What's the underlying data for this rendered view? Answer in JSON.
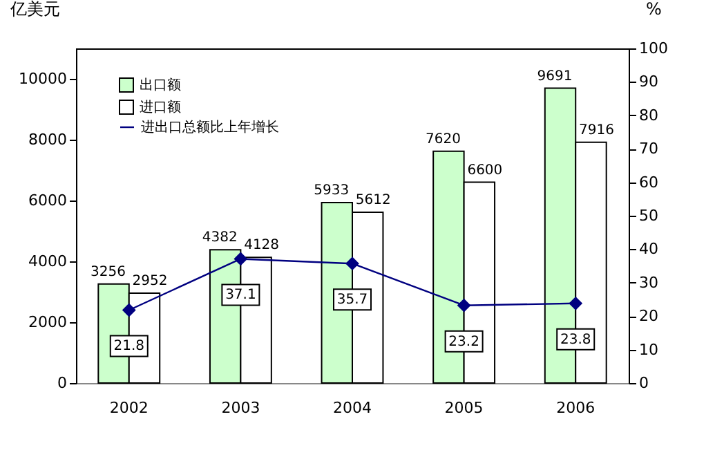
{
  "chart_data": {
    "type": "bar",
    "ylabel": "亿美元",
    "y2label": "%",
    "categories": [
      "2002",
      "2003",
      "2004",
      "2005",
      "2006"
    ],
    "series": [
      {
        "name": "出口额",
        "color": "#ccffcc",
        "values": [
          3256,
          4382,
          5933,
          7620,
          9691
        ]
      },
      {
        "name": "进口额",
        "color": "#ffffff",
        "values": [
          2952,
          4128,
          5612,
          6600,
          7916
        ]
      },
      {
        "name": "进出口总额比上年增长",
        "type": "line",
        "axis": "y2",
        "color": "#000080",
        "values": [
          21.8,
          37.1,
          35.7,
          23.2,
          23.8
        ],
        "marker": "diamond",
        "line_style": "solid"
      }
    ],
    "ylim": [
      0,
      11000
    ],
    "yticks": [
      0,
      {
        "value": 2000,
        "label": "2000"
      },
      {
        "value": 4000,
        "label": "4000"
      },
      {
        "value": 6000,
        "label": "6000"
      },
      {
        "value": 8000,
        "label": "8000"
      },
      {
        "value": 10000,
        "label": "10000"
      }
    ],
    "y2lim": [
      0,
      100
    ],
    "y2ticks": [
      0,
      10,
      20,
      30,
      40,
      50,
      60,
      70,
      80,
      90,
      100
    ],
    "data_labels": true,
    "legend": "top left",
    "grid": false
  }
}
